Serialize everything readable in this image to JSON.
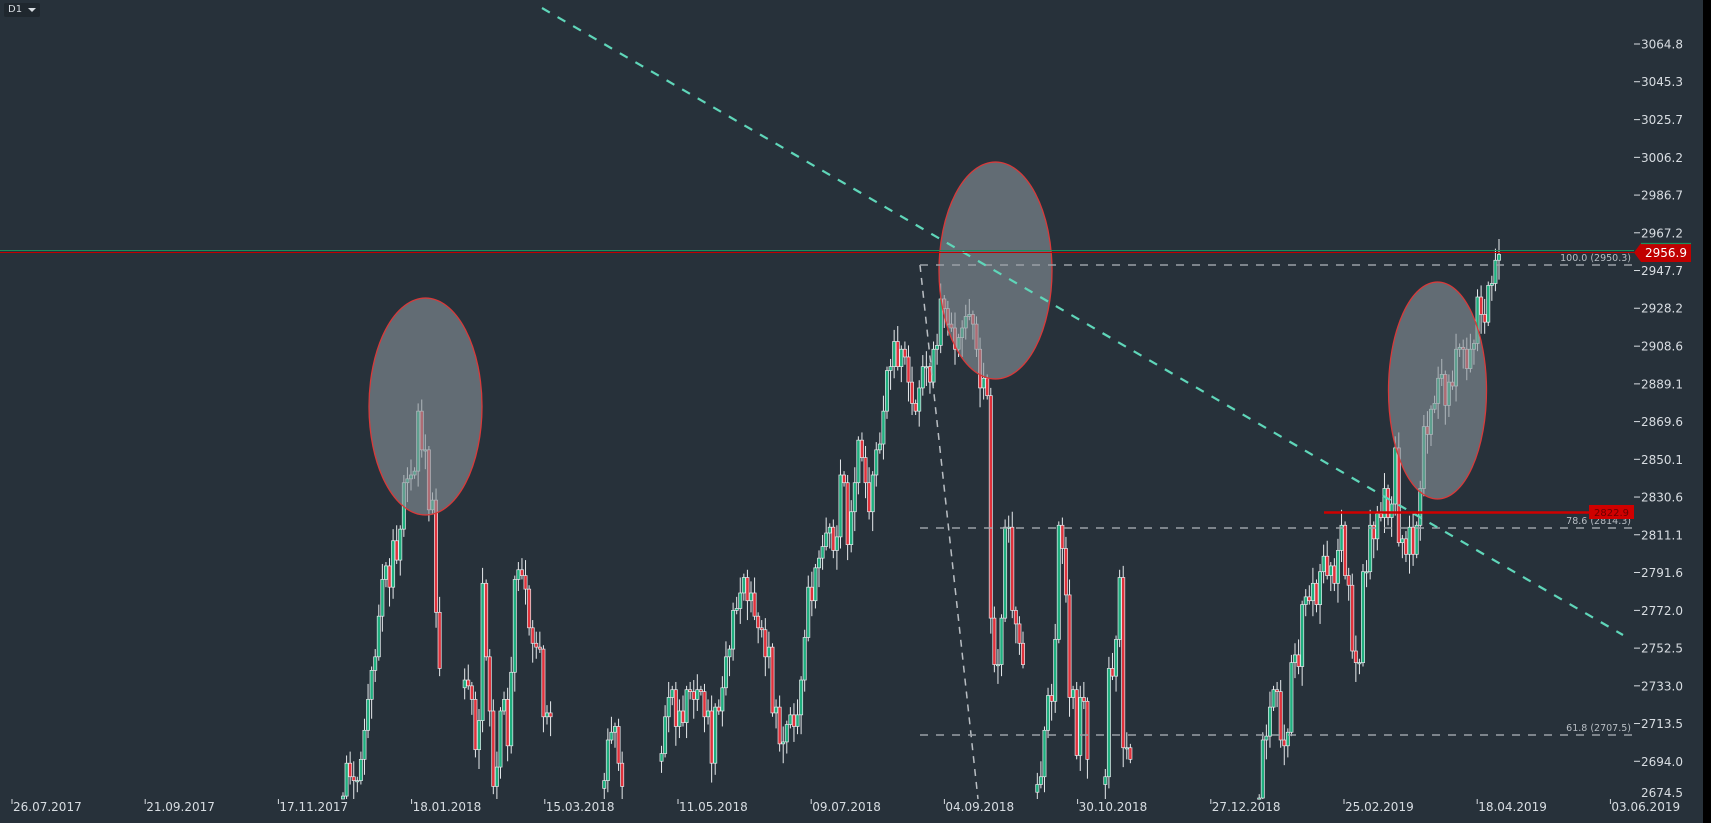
{
  "toolbar": {
    "timeframe": "D1"
  },
  "current_price": {
    "label": "2956.9",
    "value": 2956.9
  },
  "level_line": {
    "label": "2822.9"
  },
  "fibonacci": {
    "levels": [
      {
        "label": "100.0 (2950.3)"
      },
      {
        "label": "78.6 (2814.3)"
      },
      {
        "label": "61.8 (2707.5)"
      }
    ]
  },
  "colors": {
    "background": "#27313a",
    "bull": "#1fae7e",
    "bear": "#e0313b",
    "trendline": "#5fd6b9",
    "highlight_fill": "#6b7479",
    "highlight_stroke": "#d83a3a",
    "price_tag": "#c00000",
    "level_line": "#d00000",
    "fib_line": "#9aa0a6"
  },
  "chart_data": {
    "type": "candlestick",
    "timeframe": "D1",
    "ylim": [
      2674.5,
      3064.8
    ],
    "y_ticks": [
      "3064.8",
      "3045.3",
      "3025.7",
      "3006.2",
      "2986.7",
      "2967.2",
      "2947.7",
      "2928.2",
      "2908.6",
      "2889.1",
      "2869.6",
      "2850.1",
      "2830.6",
      "2811.1",
      "2791.6",
      "2772.0",
      "2752.5",
      "2733.0",
      "2713.5",
      "2694.0",
      "2674.5"
    ],
    "x_ticks": [
      "26.07.2017",
      "21.09.2017",
      "17.11.2017",
      "18.01.2018",
      "15.03.2018",
      "11.05.2018",
      "09.07.2018",
      "04.09.2018",
      "30.10.2018",
      "27.12.2018",
      "25.02.2019",
      "18.04.2019",
      "03.06.2019"
    ],
    "closes": [
      2676,
      2693,
      2686,
      2684,
      2684,
      2695,
      2710,
      2726,
      2741,
      2748,
      2769,
      2788,
      2795,
      2784,
      2808,
      2798,
      2814,
      2838,
      2840,
      2842,
      2844,
      2875,
      2855,
      2855,
      2824,
      2829,
      2771,
      2742,
      null,
      null,
      null,
      null,
      null,
      null,
      2736,
      2733,
      2726,
      2700,
      2715,
      2786,
      2748,
      2720,
      2681,
      2691,
      2720,
      2726,
      2702,
      2740,
      2788,
      2793,
      2790,
      2783,
      2763,
      2755,
      2753,
      2752,
      2717,
      2719,
      2717,
      null,
      null,
      null,
      null,
      null,
      null,
      null,
      null,
      null,
      null,
      null,
      null,
      null,
      null,
      2684,
      2705,
      2709,
      2712,
      2693,
      2681,
      null,
      null,
      null,
      null,
      null,
      null,
      null,
      null,
      null,
      null,
      2698,
      2717,
      2727,
      2731,
      2712,
      2720,
      2714,
      2731,
      2730,
      2726,
      2731,
      2730,
      2717,
      2720,
      2693,
      2722,
      2720,
      2732,
      2748,
      2752,
      2772,
      2773,
      2781,
      2789,
      2777,
      2781,
      2769,
      2763,
      2762,
      2748,
      2753,
      2719,
      2722,
      2703,
      2704,
      2713,
      2718,
      2712,
      2718,
      2736,
      2758,
      2784,
      2777,
      2794,
      2799,
      2805,
      2812,
      2815,
      2803,
      2810,
      2842,
      2838,
      2806,
      2823,
      2838,
      2860,
      2851,
      2838,
      2823,
      2842,
      2855,
      2858,
      2875,
      2896,
      2898,
      2911,
      2898,
      2907,
      2903,
      2890,
      2879,
      2875,
      2887,
      2898,
      2898,
      2890,
      2907,
      2909,
      2933,
      2928,
      2920,
      2918,
      2907,
      2913,
      2918,
      2924,
      2925,
      2920,
      2907,
      2887,
      2892,
      2883,
      2768,
      2744,
      2744,
      2768,
      2815,
      2815,
      2772,
      2765,
      2755,
      2744,
      null,
      null,
      null,
      2682,
      2686,
      2710,
      2728,
      2725,
      2757,
      2816,
      2804,
      2780,
      2727,
      2731,
      2697,
      2727,
      2725,
      2695,
      null,
      null,
      null,
      null,
      2686,
      2742,
      2738,
      2757,
      2789,
      2701,
      2701,
      2695,
      null,
      null,
      null,
      null,
      null,
      null,
      null,
      null,
      null,
      null,
      null,
      null,
      null,
      null,
      null,
      null,
      null,
      null,
      null,
      null,
      null,
      null,
      null,
      null,
      null,
      null,
      null,
      null,
      null,
      null,
      null,
      null,
      null,
      null,
      null,
      2675,
      2705,
      2707,
      2722,
      2731,
      2730,
      2705,
      2702,
      2709,
      2745,
      2749,
      2743,
      2775,
      2779,
      2777,
      2786,
      2775,
      2792,
      2800,
      2790,
      2795,
      2786,
      2803,
      2816,
      2790,
      2785,
      2751,
      2745,
      2745,
      2792,
      2792,
      2816,
      2809,
      2822,
      2820,
      2835,
      2820,
      2827,
      2856,
      2807,
      2809,
      2801,
      2815,
      2801,
      2816,
      2835,
      2867,
      2863,
      2876,
      2879,
      2892,
      2894,
      2878,
      2890,
      2888,
      2907,
      2908,
      2907,
      2897,
      2907,
      2910,
      2934,
      2925,
      2921,
      2940,
      2941,
      2953,
      2956
    ]
  }
}
